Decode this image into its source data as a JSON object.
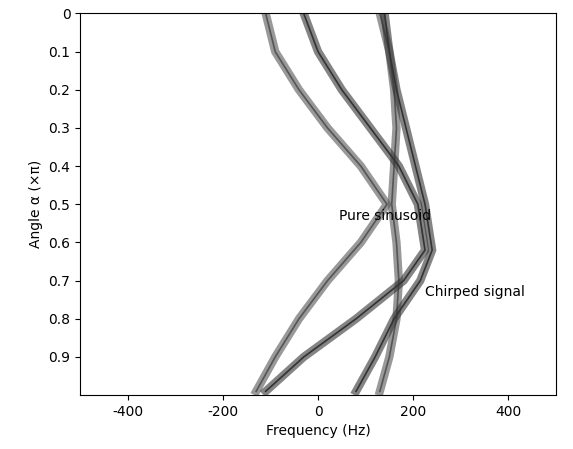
{
  "chart_data": {
    "type": "line",
    "x_label": "Frequency (Hz)",
    "y_label": "Angle α (×π)",
    "xlim": [
      -500,
      500
    ],
    "xticks": [
      -400,
      -200,
      0,
      200,
      400
    ],
    "ylim": [
      1.0,
      0
    ],
    "yticks": [
      0,
      0.1,
      0.2,
      0.3,
      0.4,
      0.5,
      0.6,
      0.7,
      0.8,
      0.9
    ],
    "grid": false,
    "annotations": [
      {
        "text": "Pure sinusoid",
        "x": 45,
        "y": 0.53
      },
      {
        "text": "Chirped signal",
        "x": 225,
        "y": 0.73
      }
    ],
    "series": [
      {
        "color": "#555555",
        "x": [
          -110,
          -90,
          -40,
          20,
          90,
          145,
          90,
          20,
          -40,
          -90,
          -130
        ],
        "values": [
          0,
          0.1,
          0.2,
          0.3,
          0.4,
          0.5,
          0.6,
          0.7,
          0.8,
          0.9,
          0.99
        ]
      },
      {
        "color": "#555555",
        "x": [
          130,
          150,
          160,
          165,
          160,
          155,
          165,
          170,
          165,
          150,
          130
        ],
        "values": [
          0,
          0.1,
          0.2,
          0.3,
          0.4,
          0.5,
          0.6,
          0.7,
          0.8,
          0.9,
          0.99
        ]
      },
      {
        "color": "#333333",
        "x": [
          -30,
          0,
          50,
          110,
          170,
          210,
          225,
          180,
          80,
          -30,
          -110
        ],
        "values": [
          0,
          0.1,
          0.2,
          0.3,
          0.4,
          0.5,
          0.62,
          0.7,
          0.8,
          0.9,
          0.99
        ]
      },
      {
        "color": "#333333",
        "x": [
          140,
          150,
          165,
          185,
          205,
          225,
          240,
          215,
          160,
          120,
          80
        ],
        "values": [
          0,
          0.1,
          0.2,
          0.3,
          0.4,
          0.5,
          0.62,
          0.7,
          0.8,
          0.9,
          0.99
        ]
      }
    ]
  }
}
